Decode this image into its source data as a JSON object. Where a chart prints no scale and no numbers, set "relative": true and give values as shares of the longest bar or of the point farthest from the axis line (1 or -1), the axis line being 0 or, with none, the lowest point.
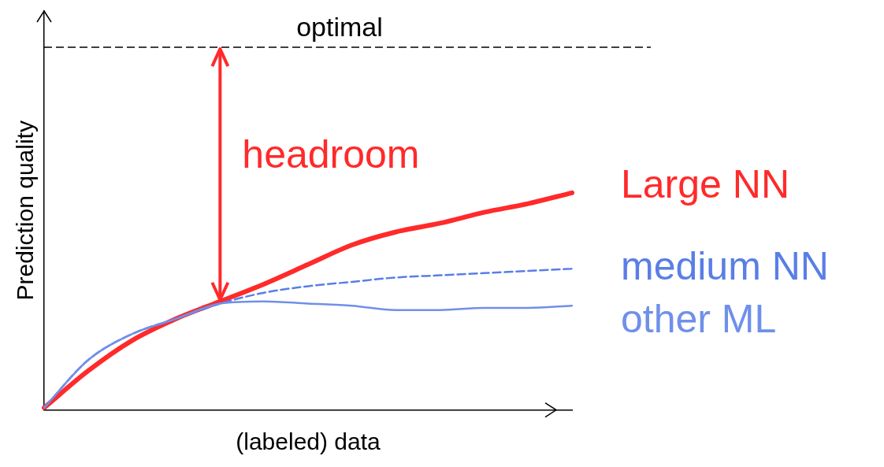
{
  "chart_data": {
    "type": "line",
    "relative": true,
    "xlabel": "(labeled) data",
    "ylabel": "Prediction quality",
    "categories": [
      null,
      null,
      null,
      null,
      null,
      null,
      null,
      null,
      null,
      null,
      null,
      null,
      null
    ],
    "series": [
      {
        "name": "Large NN",
        "color": "#ff2a2a",
        "values": [
          0.01,
          0.18,
          0.32,
          0.42,
          0.5,
          0.58,
          0.67,
          0.76,
          0.82,
          0.86,
          0.91,
          0.95,
          1
        ]
      },
      {
        "name": "medium NN",
        "color": "#5a7ee6",
        "line_style": "dashed",
        "values": [
          0.01,
          0.23,
          0.35,
          0.42,
          0.49,
          0.54,
          0.57,
          0.59,
          0.61,
          0.62,
          0.63,
          0.64,
          0.65
        ]
      },
      {
        "name": "other ML",
        "color": "#6f90ea",
        "values": [
          0.01,
          0.23,
          0.35,
          0.42,
          0.49,
          0.5,
          0.49,
          0.48,
          0.46,
          0.46,
          0.47,
          0.47,
          0.48
        ]
      }
    ],
    "ref_lines": [
      {
        "axis": "y",
        "value": 1.67,
        "label": "optimal",
        "color": "#000000",
        "line_style": "dashed"
      }
    ],
    "annotations": [
      "headroom"
    ],
    "grid": false,
    "legend": false,
    "marker": "none"
  }
}
